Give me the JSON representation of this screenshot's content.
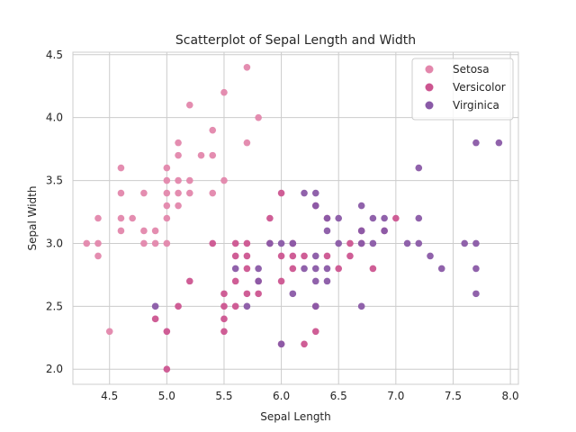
{
  "chart_data": {
    "type": "scatter",
    "title": "Scatterplot of Sepal Length and Width",
    "xlabel": "Sepal Length",
    "ylabel": "Sepal Width",
    "xlim": [
      4.18,
      8.07
    ],
    "ylim": [
      1.88,
      4.52
    ],
    "xticks": [
      4.5,
      5.0,
      5.5,
      6.0,
      6.5,
      7.0,
      7.5,
      8.0
    ],
    "xtick_labels": [
      "4.5",
      "5.0",
      "5.5",
      "6.0",
      "6.5",
      "7.0",
      "7.5",
      "8.0"
    ],
    "yticks": [
      2.0,
      2.5,
      3.0,
      3.5,
      4.0,
      4.5
    ],
    "ytick_labels": [
      "2.0",
      "2.5",
      "3.0",
      "3.5",
      "4.0",
      "4.5"
    ],
    "grid": true,
    "legend_position": "top-right",
    "series": [
      {
        "name": "Setosa",
        "color": "#e387ac",
        "points": [
          [
            4.3,
            3.0
          ],
          [
            4.4,
            2.9
          ],
          [
            4.4,
            3.0
          ],
          [
            4.4,
            3.2
          ],
          [
            4.5,
            2.3
          ],
          [
            4.6,
            3.1
          ],
          [
            4.6,
            3.2
          ],
          [
            4.6,
            3.4
          ],
          [
            4.6,
            3.6
          ],
          [
            4.7,
            3.2
          ],
          [
            4.8,
            3.0
          ],
          [
            4.8,
            3.1
          ],
          [
            4.8,
            3.4
          ],
          [
            4.9,
            3.0
          ],
          [
            4.9,
            3.1
          ],
          [
            5.0,
            3.0
          ],
          [
            5.0,
            3.2
          ],
          [
            5.0,
            3.3
          ],
          [
            5.0,
            3.4
          ],
          [
            5.0,
            3.5
          ],
          [
            5.0,
            3.6
          ],
          [
            5.1,
            3.3
          ],
          [
            5.1,
            3.4
          ],
          [
            5.1,
            3.5
          ],
          [
            5.1,
            3.7
          ],
          [
            5.1,
            3.8
          ],
          [
            5.2,
            3.4
          ],
          [
            5.2,
            3.5
          ],
          [
            5.2,
            4.1
          ],
          [
            5.3,
            3.7
          ],
          [
            5.4,
            3.4
          ],
          [
            5.4,
            3.7
          ],
          [
            5.4,
            3.9
          ],
          [
            5.5,
            3.5
          ],
          [
            5.5,
            4.2
          ],
          [
            5.7,
            3.8
          ],
          [
            5.7,
            4.4
          ],
          [
            5.8,
            4.0
          ]
        ]
      },
      {
        "name": "Versicolor",
        "color": "#cc5590",
        "points": [
          [
            4.9,
            2.4
          ],
          [
            5.0,
            2.0
          ],
          [
            5.0,
            2.3
          ],
          [
            5.1,
            2.5
          ],
          [
            5.2,
            2.7
          ],
          [
            5.4,
            3.0
          ],
          [
            5.5,
            2.3
          ],
          [
            5.5,
            2.4
          ],
          [
            5.5,
            2.5
          ],
          [
            5.5,
            2.6
          ],
          [
            5.6,
            2.5
          ],
          [
            5.6,
            2.7
          ],
          [
            5.6,
            2.9
          ],
          [
            5.6,
            3.0
          ],
          [
            5.7,
            2.6
          ],
          [
            5.7,
            2.8
          ],
          [
            5.7,
            2.9
          ],
          [
            5.7,
            3.0
          ],
          [
            5.8,
            2.6
          ],
          [
            5.8,
            2.7
          ],
          [
            5.9,
            3.0
          ],
          [
            5.9,
            3.2
          ],
          [
            6.0,
            2.2
          ],
          [
            6.0,
            2.7
          ],
          [
            6.0,
            2.9
          ],
          [
            6.0,
            3.4
          ],
          [
            6.1,
            2.8
          ],
          [
            6.1,
            2.9
          ],
          [
            6.1,
            3.0
          ],
          [
            6.2,
            2.2
          ],
          [
            6.2,
            2.9
          ],
          [
            6.3,
            2.3
          ],
          [
            6.3,
            2.5
          ],
          [
            6.3,
            3.3
          ],
          [
            6.4,
            2.9
          ],
          [
            6.4,
            3.2
          ],
          [
            6.5,
            2.8
          ],
          [
            6.6,
            2.9
          ],
          [
            6.6,
            3.0
          ],
          [
            6.7,
            3.0
          ],
          [
            6.7,
            3.1
          ],
          [
            6.8,
            2.8
          ],
          [
            6.9,
            3.1
          ],
          [
            7.0,
            3.2
          ]
        ]
      },
      {
        "name": "Virginica",
        "color": "#8a5aa7",
        "points": [
          [
            4.9,
            2.5
          ],
          [
            5.6,
            2.8
          ],
          [
            5.7,
            2.5
          ],
          [
            5.8,
            2.7
          ],
          [
            5.8,
            2.8
          ],
          [
            5.9,
            3.0
          ],
          [
            6.0,
            2.2
          ],
          [
            6.0,
            3.0
          ],
          [
            6.1,
            2.6
          ],
          [
            6.1,
            3.0
          ],
          [
            6.2,
            2.8
          ],
          [
            6.2,
            3.4
          ],
          [
            6.3,
            2.5
          ],
          [
            6.3,
            2.7
          ],
          [
            6.3,
            2.8
          ],
          [
            6.3,
            2.9
          ],
          [
            6.3,
            3.3
          ],
          [
            6.3,
            3.4
          ],
          [
            6.4,
            2.7
          ],
          [
            6.4,
            2.8
          ],
          [
            6.4,
            3.1
          ],
          [
            6.4,
            3.2
          ],
          [
            6.5,
            3.0
          ],
          [
            6.5,
            3.2
          ],
          [
            6.7,
            2.5
          ],
          [
            6.7,
            3.0
          ],
          [
            6.7,
            3.1
          ],
          [
            6.7,
            3.3
          ],
          [
            6.8,
            3.0
          ],
          [
            6.8,
            3.2
          ],
          [
            6.9,
            3.1
          ],
          [
            6.9,
            3.2
          ],
          [
            7.1,
            3.0
          ],
          [
            7.2,
            3.0
          ],
          [
            7.2,
            3.2
          ],
          [
            7.2,
            3.6
          ],
          [
            7.3,
            2.9
          ],
          [
            7.4,
            2.8
          ],
          [
            7.6,
            3.0
          ],
          [
            7.7,
            2.6
          ],
          [
            7.7,
            2.8
          ],
          [
            7.7,
            3.0
          ],
          [
            7.7,
            3.8
          ],
          [
            7.9,
            3.8
          ]
        ]
      }
    ]
  }
}
